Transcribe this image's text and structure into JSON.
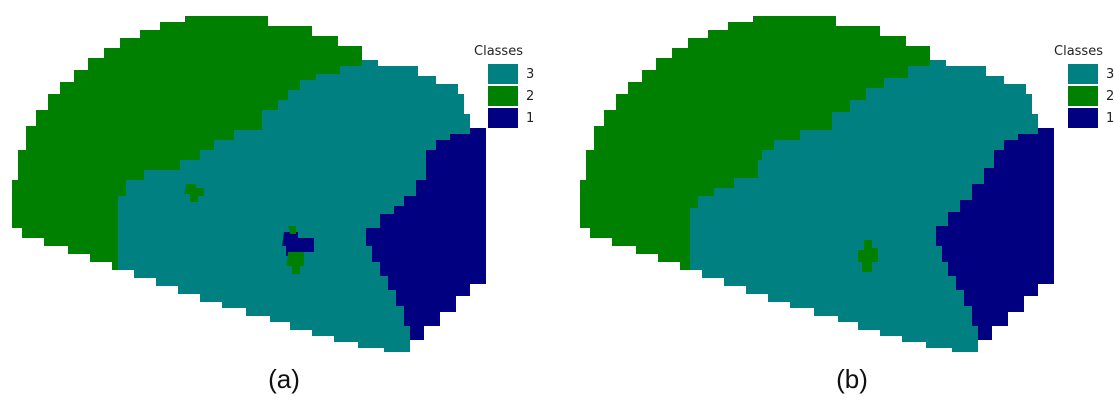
{
  "colors": {
    "class_3": "#008080",
    "class_2": "#008000",
    "class_1": "#000080"
  },
  "panels": [
    {
      "caption": "(a)",
      "legend": {
        "title": "Classes",
        "items": [
          {
            "label": "3",
            "class": "class_3"
          },
          {
            "label": "2",
            "class": "class_2"
          },
          {
            "label": "1",
            "class": "class_1"
          }
        ]
      }
    },
    {
      "caption": "(b)",
      "legend": {
        "title": "Classes",
        "items": [
          {
            "label": "3",
            "class": "class_3"
          },
          {
            "label": "2",
            "class": "class_2"
          },
          {
            "label": "1",
            "class": "class_1"
          }
        ]
      }
    }
  ]
}
